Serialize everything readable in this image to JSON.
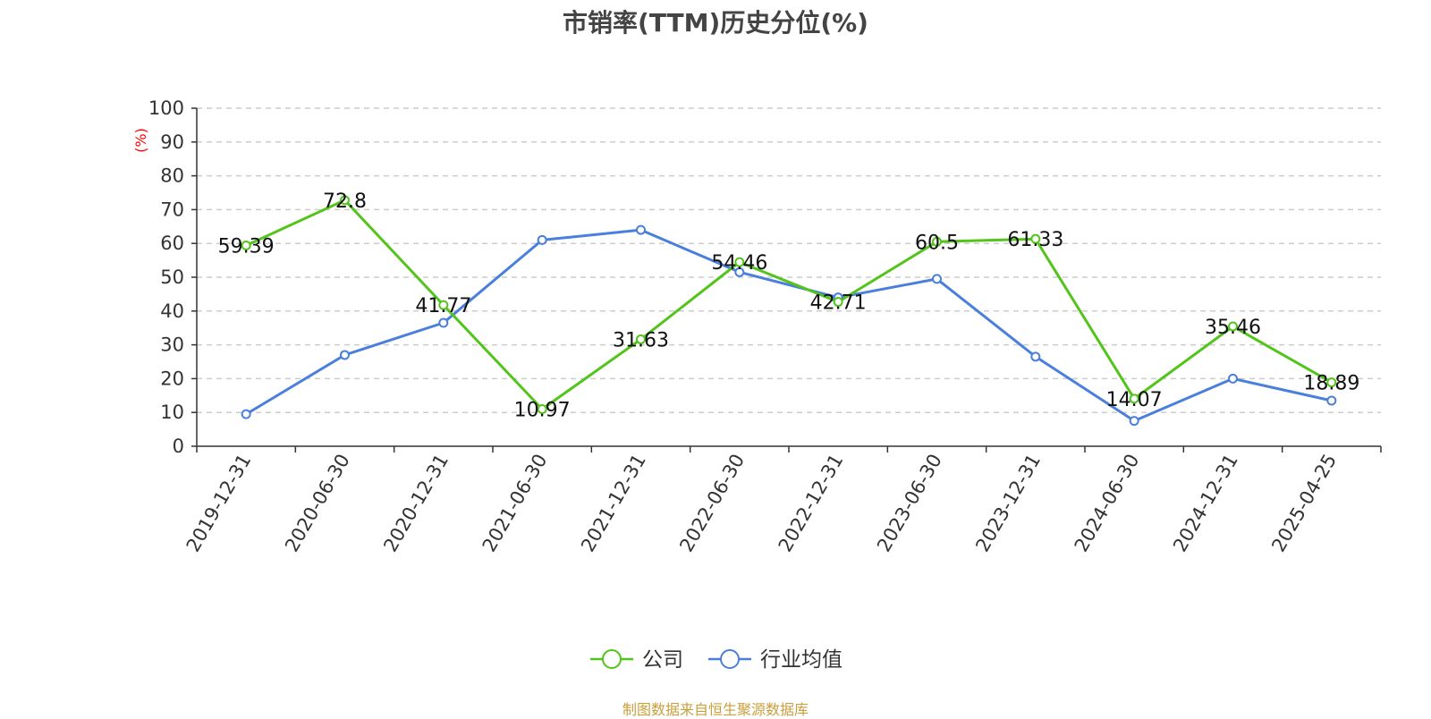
{
  "chart_data": {
    "type": "line",
    "title": "市销率(TTM)历史分位(%)",
    "ylabel": "(%)",
    "ylim": [
      0,
      100
    ],
    "yticks": [
      "0",
      "10",
      "20",
      "30",
      "40",
      "50",
      "60",
      "70",
      "80",
      "90",
      "100"
    ],
    "grid": true,
    "legend_position": "bottom-center",
    "categories": [
      "2019-12-31",
      "2020-06-30",
      "2020-12-31",
      "2021-06-30",
      "2021-12-31",
      "2022-06-30",
      "2022-12-31",
      "2023-06-30",
      "2023-12-31",
      "2024-06-30",
      "2024-12-31",
      "2025-04-25"
    ],
    "series": [
      {
        "name": "公司",
        "color": "#52c41a",
        "values": [
          59.39,
          72.8,
          41.77,
          10.97,
          31.63,
          54.46,
          42.71,
          60.5,
          61.33,
          14.07,
          35.46,
          18.89
        ],
        "labels": [
          "59.39",
          "72.8",
          "41.77",
          "10.97",
          "31.63",
          "54.46",
          "42.71",
          "60.5",
          "61.33",
          "14.07",
          "35.46",
          "18.89"
        ]
      },
      {
        "name": "行业均值",
        "color": "#4a7fdc",
        "values": [
          9.5,
          27,
          36.5,
          61,
          64,
          51.5,
          44,
          49.5,
          26.5,
          7.5,
          20,
          13.5
        ]
      }
    ]
  },
  "footer": {
    "source": "制图数据来自恒生聚源数据库"
  }
}
